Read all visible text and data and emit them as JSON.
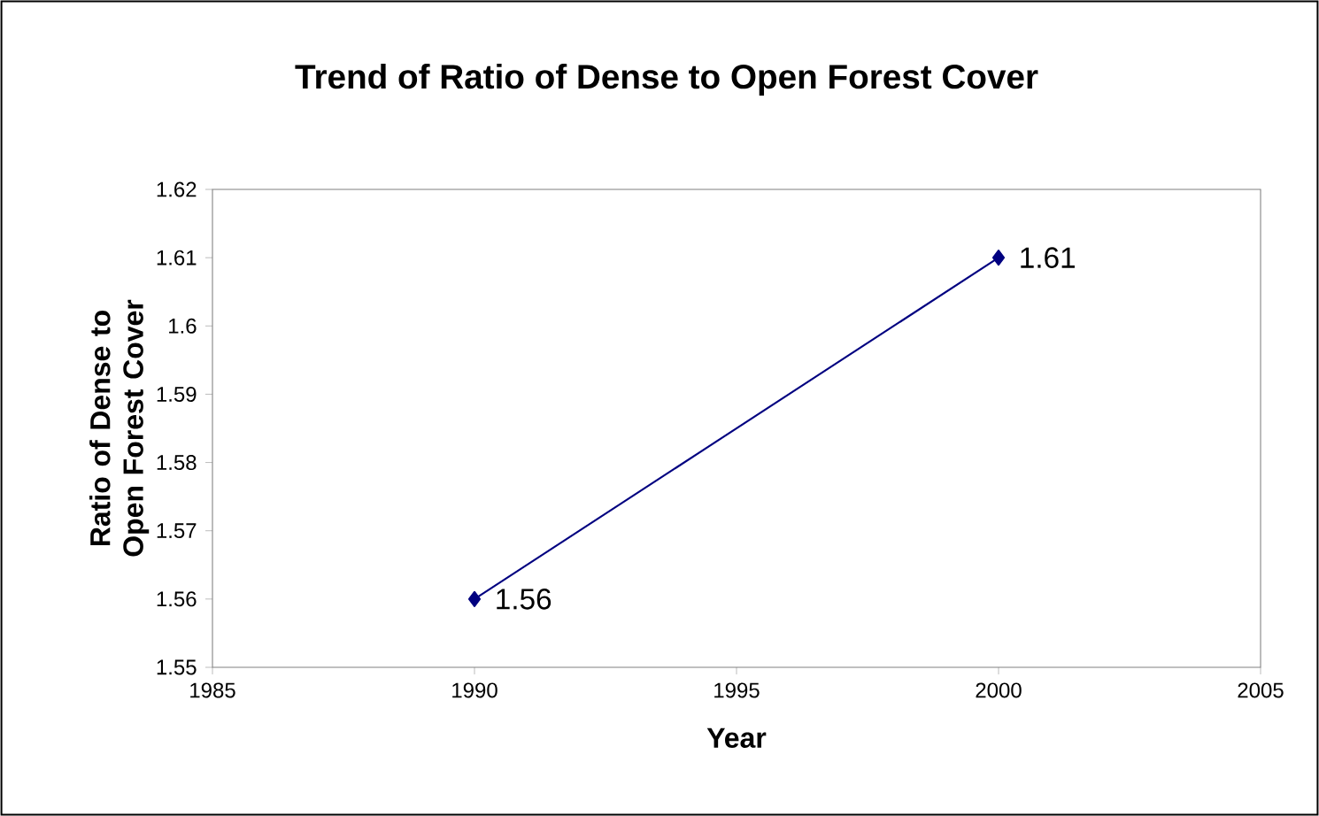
{
  "chart_data": {
    "type": "line",
    "title": "Trend of Ratio of Dense to Open Forest Cover",
    "xlabel": "Year",
    "ylabel": "Ratio of Dense to Open Forest Cover",
    "x": [
      1990,
      2000
    ],
    "series": [
      {
        "color": "#000080",
        "values": [
          1.56,
          1.61
        ]
      }
    ],
    "xlim": [
      1985,
      2005
    ],
    "xticks": [
      1985,
      1990,
      1995,
      2000,
      2005
    ],
    "ylim": [
      1.55,
      1.62
    ],
    "yticks": [
      1.55,
      1.56,
      1.57,
      1.58,
      1.59,
      1.6,
      1.61,
      1.62
    ],
    "data_labels": true,
    "marker": "diamond",
    "line_style": "solid",
    "grid": false
  }
}
